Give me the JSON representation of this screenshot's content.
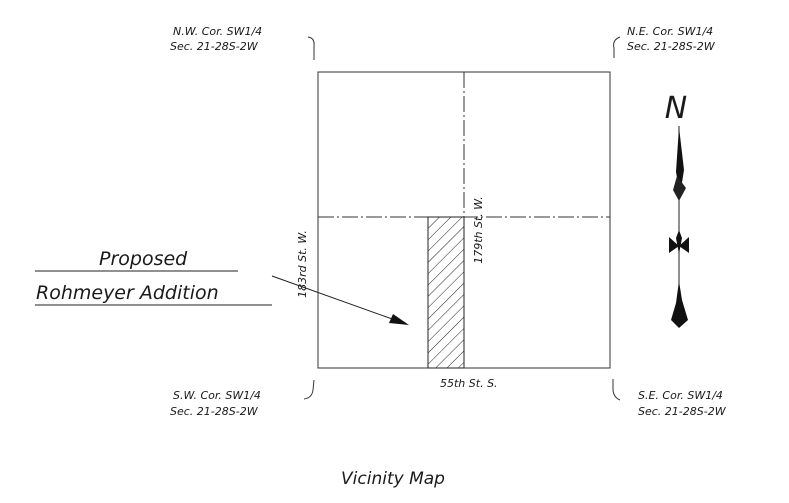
{
  "vicinity_map": {
    "title": "Vicinity Map",
    "corners": {
      "nw": {
        "line1": "N.W. Cor. SW1/4",
        "line2": "Sec. 21-28S-2W"
      },
      "ne": {
        "line1": "N.E. Cor. SW1/4",
        "line2": "Sec. 21-28S-2W"
      },
      "sw": {
        "line1": "S.W. Cor. SW1/4",
        "line2": "Sec. 21-28S-2W"
      },
      "se": {
        "line1": "S.E. Cor. SW1/4",
        "line2": "Sec. 21-28S-2W"
      }
    },
    "streets": {
      "west": "183rd St. W.",
      "center": "179th St. W.",
      "south": "55th St. S."
    },
    "proposed": {
      "line1": "Proposed",
      "line2": "Rohmeyer Addition"
    },
    "north_arrow": {
      "letter": "N"
    }
  }
}
